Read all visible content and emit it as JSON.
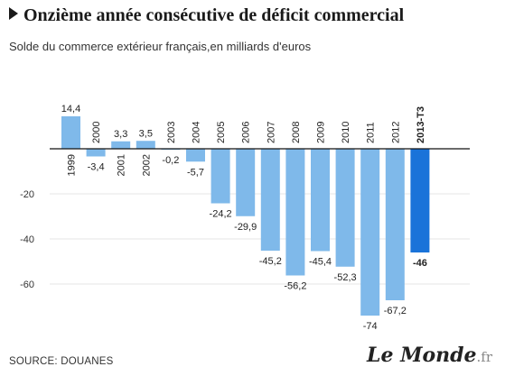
{
  "header": {
    "title": "Onzième année consécutive de déficit commercial",
    "subtitle": "Solde du commerce extérieur français,en milliards d'euros"
  },
  "footer": {
    "source": "SOURCE: DOUANES",
    "logo_text": "Le Monde",
    "logo_suffix": ".fr"
  },
  "colors": {
    "bar": "#7fb9ea",
    "bar_highlight": "#1a73d9",
    "grid": "#e6e6e6",
    "axis": "#111111"
  },
  "chart_data": {
    "type": "bar",
    "title": "Onzième année consécutive de déficit commercial",
    "subtitle": "Solde du commerce extérieur français,en milliards d'euros",
    "categories": [
      "1999",
      "2000",
      "2001",
      "2002",
      "2003",
      "2004",
      "2005",
      "2006",
      "2007",
      "2008",
      "2009",
      "2010",
      "2011",
      "2012",
      "2013-T3"
    ],
    "values": [
      14.4,
      -3.4,
      3.3,
      3.5,
      -0.2,
      -5.7,
      -24.2,
      -29.9,
      -45.2,
      -56.2,
      -45.4,
      -52.3,
      -74,
      -67.2,
      -46
    ],
    "value_labels": [
      "14,4",
      "-3,4",
      "3,3",
      "3,5",
      "-0,2",
      "-5,7",
      "-24,2",
      "-29,9",
      "-45,2",
      "-56,2",
      "-45,4",
      "-52,3",
      "-74",
      "-67,2",
      "-46"
    ],
    "highlight": "2013-T3",
    "yticks": [
      -20,
      -40,
      -60
    ],
    "ytick_labels": [
      "-20",
      "-40",
      "-60"
    ],
    "ylim": [
      -80,
      20
    ],
    "grid": true,
    "xlabel": "",
    "ylabel": ""
  }
}
